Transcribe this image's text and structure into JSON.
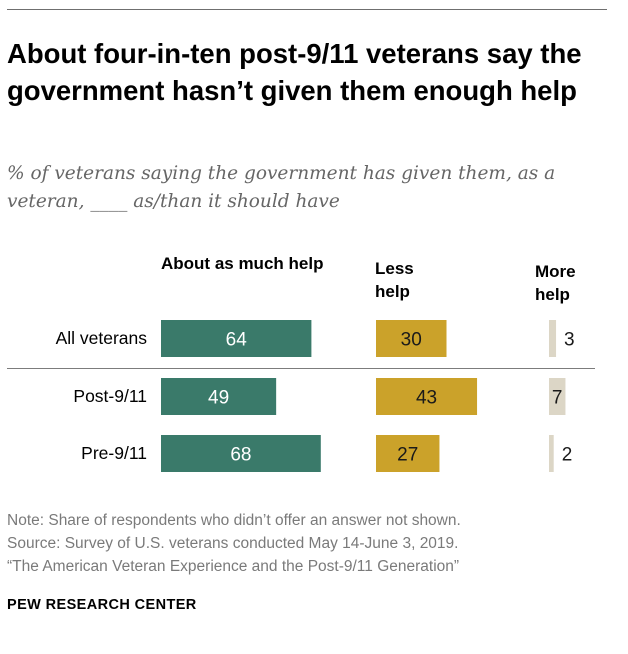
{
  "title": "About four-in-ten post-9/11 veterans say the government hasn’t given them enough help",
  "subtitle": "% of veterans saying the government has given them, as a veteran, ____ as/than it should have",
  "note": "Note: Share of respondents who didn’t offer an answer not shown.",
  "source": "Source: Survey of U.S. veterans conducted May 14-June 3, 2019.",
  "report": "“The American Veteran Experience and the Post-9/11 Generation”",
  "brand": "PEW RESEARCH CENTER",
  "colors": {
    "about": "#3a7a6a",
    "less": "#cba22a",
    "more": "#dcd6c6"
  },
  "chart_data": {
    "type": "bar",
    "orientation": "horizontal",
    "title": "About four-in-ten post-9/11 veterans say the government hasn’t given them enough help",
    "categories": [
      "All veterans",
      "Post-9/11",
      "Pre-9/11"
    ],
    "series": [
      {
        "name": "About as much help",
        "values": [
          64,
          49,
          68
        ]
      },
      {
        "name": "Less help",
        "values": [
          30,
          43,
          27
        ]
      },
      {
        "name": "More help",
        "values": [
          3,
          7,
          2
        ]
      }
    ],
    "unit": "%"
  }
}
